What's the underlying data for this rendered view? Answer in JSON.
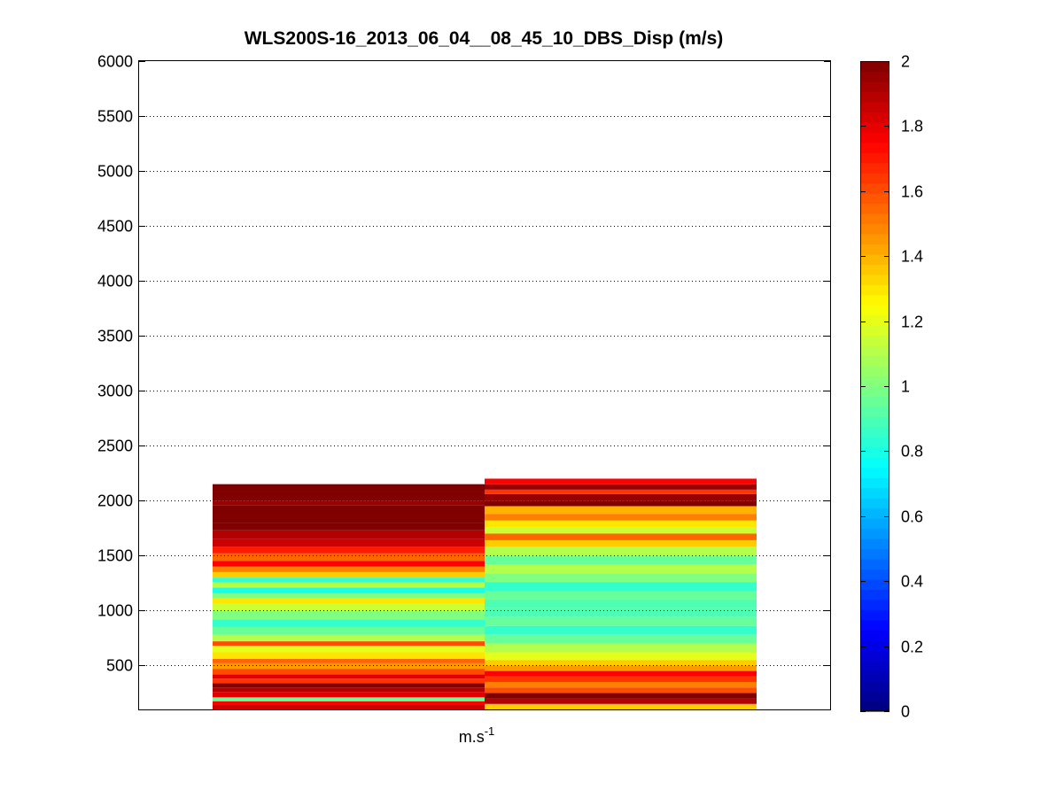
{
  "chart_data": {
    "type": "heatmap",
    "title": "WLS200S-16_2013_06_04__08_45_10_DBS_Disp (m/s)",
    "xlabel": "m.s",
    "xlabel_superscript": "-1",
    "ylabel": "",
    "ylim": [
      100,
      6000
    ],
    "yticks": [
      500,
      1000,
      1500,
      2000,
      2500,
      3000,
      3500,
      4000,
      4500,
      5000,
      5500,
      6000
    ],
    "grid": true,
    "colormap": "jet",
    "clim": [
      0,
      2
    ],
    "colorbar_ticks": [
      "0",
      "0.2",
      "0.4",
      "0.6",
      "0.8",
      "1",
      "1.2",
      "1.4",
      "1.6",
      "1.8",
      "2"
    ],
    "columns": [
      {
        "top": 2150,
        "bands": [
          {
            "from": 100,
            "to": 140,
            "value": 1.85
          },
          {
            "from": 140,
            "to": 175,
            "value": 1.75
          },
          {
            "from": 175,
            "to": 210,
            "value": 0.95
          },
          {
            "from": 210,
            "to": 260,
            "value": 1.8
          },
          {
            "from": 260,
            "to": 300,
            "value": 1.9
          },
          {
            "from": 300,
            "to": 340,
            "value": 2.0
          },
          {
            "from": 340,
            "to": 380,
            "value": 1.65
          },
          {
            "from": 380,
            "to": 420,
            "value": 1.8
          },
          {
            "from": 420,
            "to": 470,
            "value": 1.6
          },
          {
            "from": 470,
            "to": 520,
            "value": 1.45
          },
          {
            "from": 520,
            "to": 560,
            "value": 1.55
          },
          {
            "from": 560,
            "to": 620,
            "value": 1.3
          },
          {
            "from": 620,
            "to": 680,
            "value": 1.2
          },
          {
            "from": 680,
            "to": 720,
            "value": 1.6
          },
          {
            "from": 720,
            "to": 780,
            "value": 1.1
          },
          {
            "from": 780,
            "to": 850,
            "value": 0.95
          },
          {
            "from": 850,
            "to": 920,
            "value": 0.85
          },
          {
            "from": 920,
            "to": 1000,
            "value": 1.0
          },
          {
            "from": 1000,
            "to": 1060,
            "value": 1.15
          },
          {
            "from": 1060,
            "to": 1110,
            "value": 1.3
          },
          {
            "from": 1110,
            "to": 1160,
            "value": 1.0
          },
          {
            "from": 1160,
            "to": 1210,
            "value": 0.8
          },
          {
            "from": 1210,
            "to": 1260,
            "value": 1.1
          },
          {
            "from": 1260,
            "to": 1300,
            "value": 0.85
          },
          {
            "from": 1300,
            "to": 1350,
            "value": 1.35
          },
          {
            "from": 1350,
            "to": 1400,
            "value": 1.5
          },
          {
            "from": 1400,
            "to": 1450,
            "value": 1.75
          },
          {
            "from": 1450,
            "to": 1520,
            "value": 1.55
          },
          {
            "from": 1520,
            "to": 1580,
            "value": 1.7
          },
          {
            "from": 1580,
            "to": 1650,
            "value": 1.85
          },
          {
            "from": 1650,
            "to": 1730,
            "value": 1.9
          },
          {
            "from": 1730,
            "to": 1800,
            "value": 2.0
          },
          {
            "from": 1800,
            "to": 1960,
            "value": 2.0
          },
          {
            "from": 1960,
            "to": 2000,
            "value": 1.95
          },
          {
            "from": 2000,
            "to": 2150,
            "value": 2.0
          }
        ]
      },
      {
        "top": 2200,
        "bands": [
          {
            "from": 100,
            "to": 150,
            "value": 1.35
          },
          {
            "from": 150,
            "to": 200,
            "value": 1.9
          },
          {
            "from": 200,
            "to": 250,
            "value": 2.0
          },
          {
            "from": 250,
            "to": 300,
            "value": 1.6
          },
          {
            "from": 300,
            "to": 350,
            "value": 1.5
          },
          {
            "from": 350,
            "to": 400,
            "value": 1.65
          },
          {
            "from": 400,
            "to": 450,
            "value": 1.75
          },
          {
            "from": 450,
            "to": 500,
            "value": 1.45
          },
          {
            "from": 500,
            "to": 550,
            "value": 1.35
          },
          {
            "from": 550,
            "to": 620,
            "value": 1.2
          },
          {
            "from": 620,
            "to": 700,
            "value": 1.1
          },
          {
            "from": 700,
            "to": 780,
            "value": 0.95
          },
          {
            "from": 780,
            "to": 860,
            "value": 0.85
          },
          {
            "from": 860,
            "to": 940,
            "value": 0.95
          },
          {
            "from": 940,
            "to": 1020,
            "value": 0.9
          },
          {
            "from": 1020,
            "to": 1100,
            "value": 0.9
          },
          {
            "from": 1100,
            "to": 1180,
            "value": 0.95
          },
          {
            "from": 1180,
            "to": 1260,
            "value": 0.85
          },
          {
            "from": 1260,
            "to": 1340,
            "value": 1.0
          },
          {
            "from": 1340,
            "to": 1420,
            "value": 1.1
          },
          {
            "from": 1420,
            "to": 1500,
            "value": 0.95
          },
          {
            "from": 1500,
            "to": 1580,
            "value": 1.1
          },
          {
            "from": 1580,
            "to": 1640,
            "value": 1.35
          },
          {
            "from": 1640,
            "to": 1700,
            "value": 1.55
          },
          {
            "from": 1700,
            "to": 1760,
            "value": 1.15
          },
          {
            "from": 1760,
            "to": 1820,
            "value": 1.3
          },
          {
            "from": 1820,
            "to": 1880,
            "value": 1.5
          },
          {
            "from": 1880,
            "to": 1950,
            "value": 1.4
          },
          {
            "from": 1950,
            "to": 2000,
            "value": 2.0
          },
          {
            "from": 2000,
            "to": 2060,
            "value": 1.95
          },
          {
            "from": 2060,
            "to": 2100,
            "value": 1.65
          },
          {
            "from": 2100,
            "to": 2150,
            "value": 1.95
          },
          {
            "from": 2150,
            "to": 2200,
            "value": 1.75
          }
        ]
      }
    ]
  }
}
